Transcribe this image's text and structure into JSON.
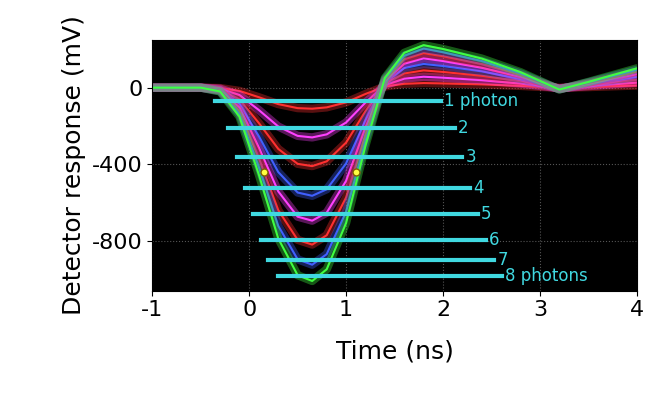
{
  "chart_data": {
    "type": "line",
    "x_label": "Time (ns)",
    "y_label": "Detector response (mV)",
    "xlim": [
      -1,
      4
    ],
    "xticks": [
      -1,
      0,
      1,
      2,
      3,
      4
    ],
    "ylim": [
      -1060,
      250
    ],
    "yticks": [
      0,
      -400,
      -800
    ],
    "grid": true,
    "x": [
      -1,
      -0.5,
      -0.3,
      -0.1,
      0.1,
      0.3,
      0.5,
      0.65,
      0.8,
      1.0,
      1.2,
      1.4,
      1.6,
      1.8,
      2.0,
      2.4,
      2.8,
      3.2,
      3.5,
      4.0
    ],
    "series": [
      {
        "color": "#ff3030",
        "values": [
          0,
          0,
          -2,
          -17,
          -50,
          -86,
          -107,
          -110,
          -103,
          -77,
          -33,
          6,
          20,
          24,
          22,
          17,
          9,
          -1,
          3,
          11
        ]
      },
      {
        "color": "#ff40ff",
        "values": [
          0,
          0,
          -5,
          -39,
          -117,
          -203,
          -252,
          -260,
          -244,
          -182,
          -78,
          13,
          47,
          57,
          52,
          39,
          21,
          -3,
          8,
          26
        ]
      },
      {
        "color": "#ff3030",
        "values": [
          0,
          0,
          -8,
          -62,
          -185,
          -320,
          -398,
          -410,
          -385,
          -287,
          -123,
          21,
          74,
          90,
          82,
          62,
          33,
          -4,
          12,
          41
        ]
      },
      {
        "color": "#4060ff",
        "values": [
          0,
          0,
          -11,
          -85,
          -254,
          -441,
          -548,
          -565,
          -531,
          -396,
          -170,
          28,
          102,
          124,
          113,
          85,
          45,
          -6,
          17,
          57
        ]
      },
      {
        "color": "#ff40ff",
        "values": [
          0,
          0,
          -14,
          -104,
          -313,
          -542,
          -674,
          -695,
          -653,
          -487,
          -209,
          35,
          125,
          153,
          139,
          104,
          56,
          -7,
          21,
          70
        ]
      },
      {
        "color": "#ff3030",
        "values": [
          0,
          0,
          -16,
          -123,
          -369,
          -640,
          -795,
          -820,
          -771,
          -574,
          -246,
          41,
          148,
          180,
          164,
          123,
          66,
          -8,
          25,
          82
        ]
      },
      {
        "color": "#4060ff",
        "values": [
          0,
          0,
          -19,
          -139,
          -416,
          -722,
          -897,
          -925,
          -870,
          -648,
          -278,
          46,
          167,
          204,
          185,
          139,
          74,
          -9,
          28,
          93
        ]
      },
      {
        "color": "#40ff40",
        "values": [
          0,
          0,
          -20,
          -152,
          -455,
          -788,
          -980,
          -1010,
          -949,
          -707,
          -303,
          51,
          182,
          222,
          202,
          152,
          81,
          -10,
          30,
          101
        ]
      }
    ],
    "levels": {
      "color": "#40d8e0",
      "labels": [
        "1 photon",
        "2",
        "3",
        "4",
        "5",
        "6",
        "7",
        "8 photons"
      ],
      "y": [
        -68,
        -209,
        -361,
        -523,
        -659,
        -795,
        -900,
        -983
      ],
      "x_start": [
        -0.35,
        -0.22,
        -0.13,
        -0.04,
        0.04,
        0.12,
        0.19,
        0.3
      ],
      "x_end": [
        1.98,
        2.12,
        2.2,
        2.28,
        2.36,
        2.44,
        2.53,
        2.61
      ]
    },
    "cursor_points": {
      "color": "#ffff40",
      "x": [
        0.15,
        1.1
      ],
      "y": [
        -440,
        -440
      ]
    }
  }
}
